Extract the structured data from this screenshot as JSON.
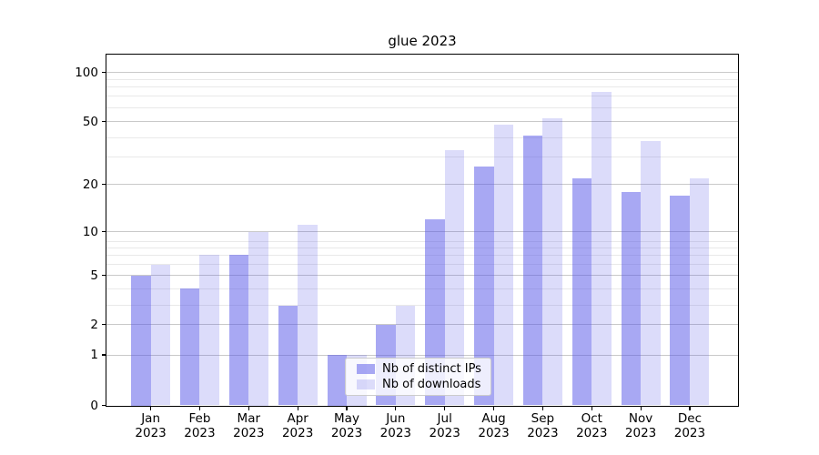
{
  "chart_data": {
    "type": "bar",
    "title": "glue 2023",
    "months": [
      "Jan",
      "Feb",
      "Mar",
      "Apr",
      "May",
      "Jun",
      "Jul",
      "Aug",
      "Sep",
      "Oct",
      "Nov",
      "Dec"
    ],
    "year_label": "2023",
    "series": [
      {
        "name": "Nb of distinct IPs",
        "color": "rgba(81,81,231,0.5)",
        "color_hex_on_white": "#a8a8f3",
        "values": [
          5,
          4,
          7,
          3,
          1,
          2,
          12,
          26,
          41,
          22,
          18,
          17
        ]
      },
      {
        "name": "Nb of downloads",
        "color": "rgba(81,81,231,0.2)",
        "color_hex_on_white": "#dcdcfa",
        "values": [
          6,
          7,
          10,
          11,
          1,
          3,
          33,
          48,
          52,
          75,
          38,
          22
        ]
      }
    ],
    "yticks": [
      100,
      50,
      20,
      10,
      5,
      2,
      1,
      0
    ],
    "minor_gridlines": [
      3,
      4,
      6,
      7,
      8,
      9,
      30,
      40,
      60,
      70,
      80,
      90
    ],
    "ylim": [
      0,
      115
    ],
    "yscale": "log-like (asinh/symlog, linear below 1)",
    "xlabel": "",
    "ylabel": "",
    "grid": "horizontal major+minor",
    "legend_position": "lower center inside plot",
    "colors": {
      "grid_major": "#c9c9c9",
      "grid_minor": "#e9e9e9",
      "spine": "#000000",
      "background": "#ffffff",
      "legend_border": "#cccccc"
    }
  }
}
